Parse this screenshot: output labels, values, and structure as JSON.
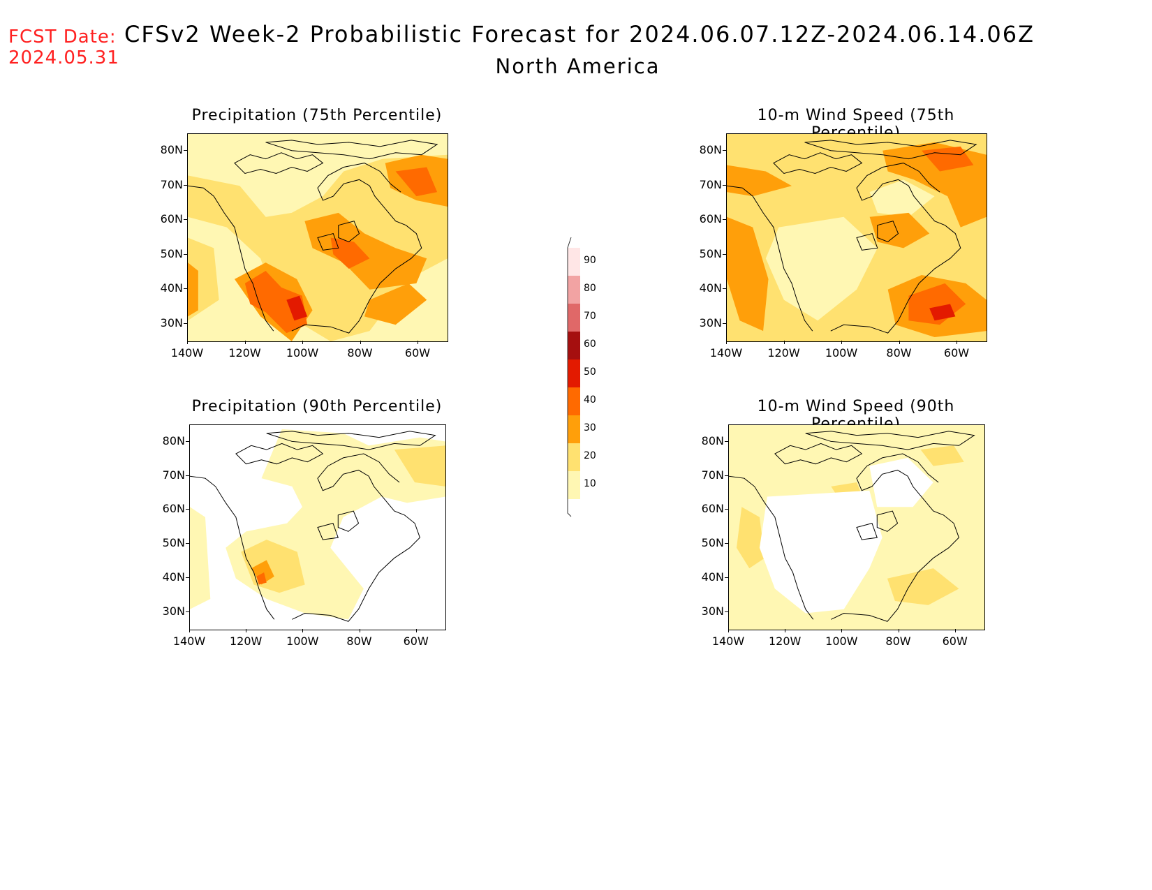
{
  "header": {
    "fcst_line1": "FCST Date:",
    "fcst_line2": "2024.05.31",
    "title": "CFSv2 Week-2 Probabilistic Forecast for 2024.06.07.12Z-2024.06.14.06Z",
    "subtitle": "North America"
  },
  "axes": {
    "lat_labels": [
      "80N",
      "70N",
      "60N",
      "50N",
      "40N",
      "30N"
    ],
    "lon_labels": [
      "140W",
      "120W",
      "100W",
      "80W",
      "60W"
    ]
  },
  "panels": [
    {
      "title": "Precipitation (75th Percentile)"
    },
    {
      "title": "10-m Wind Speed (75th Percentile)"
    },
    {
      "title": "Precipitation (90th Percentile)"
    },
    {
      "title": "10-m Wind Speed (90th Percentile)"
    }
  ],
  "colorbar": {
    "labels": [
      "90",
      "80",
      "70",
      "60",
      "50",
      "40",
      "30",
      "20",
      "10"
    ],
    "colors": [
      "#ffe6e6",
      "#f2a3a3",
      "#e06868",
      "#a50f0f",
      "#e31a00",
      "#ff6a00",
      "#ff9f0a",
      "#ffe170",
      "#fff7b3"
    ]
  },
  "palette": {
    "p10": "#fff7b3",
    "p20": "#ffe170",
    "p30": "#ff9f0a",
    "p40": "#ff6a00",
    "p50": "#e31a00",
    "p60": "#a50f0f"
  }
}
